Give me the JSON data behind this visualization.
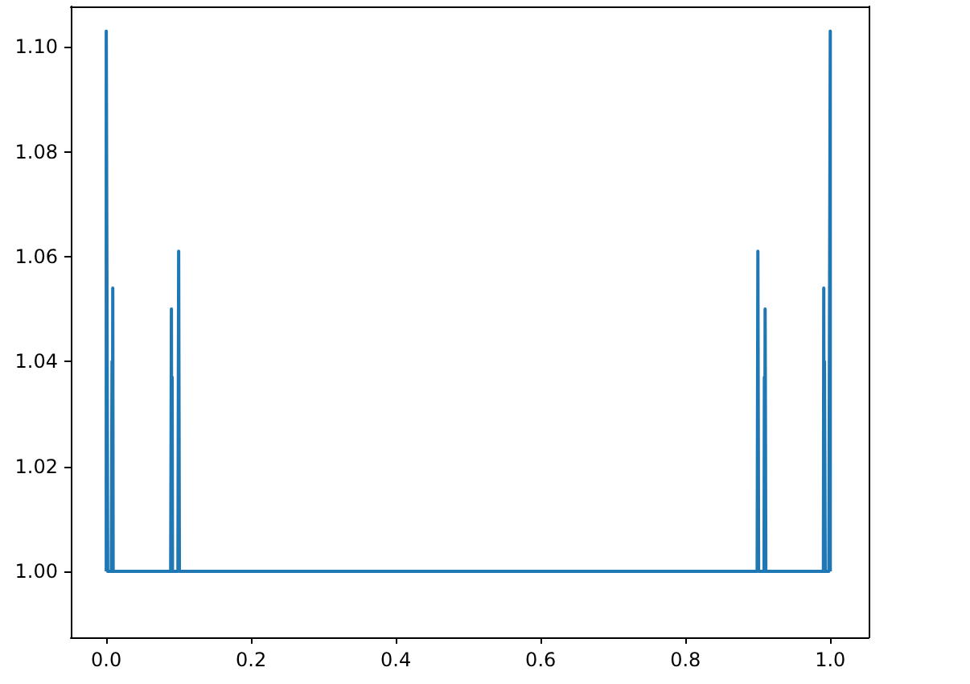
{
  "chart_data": {
    "type": "line",
    "grid": false,
    "marker": "none",
    "line_style": "solid",
    "x": [
      0,
      0,
      0.002,
      0.007,
      0.008,
      0.0085,
      0.009,
      0.0095,
      0.089,
      0.09,
      0.0905,
      0.091,
      0.0915,
      0.099,
      0.1,
      0.101,
      0.899,
      0.9,
      0.901,
      0.9085,
      0.909,
      0.9095,
      0.91,
      0.911,
      0.9905,
      0.991,
      0.9915,
      0.992,
      0.993,
      0.998,
      1.0,
      1.0
    ],
    "series": [
      {
        "color": "#1f77b4",
        "values": [
          1.0,
          1.103,
          1.0,
          1.0,
          1.04,
          1.0,
          1.054,
          1.0,
          1.0,
          1.05,
          1.0,
          1.037,
          1.0,
          1.0,
          1.061,
          1.0,
          1.0,
          1.061,
          1.0,
          1.0,
          1.037,
          1.0,
          1.05,
          1.0,
          1.0,
          1.054,
          1.0,
          1.04,
          1.0,
          1.0,
          1.103,
          1.0
        ]
      }
    ],
    "xlim": [
      -0.049,
      1.053
    ],
    "ylim": [
      0.9874,
      1.1077
    ],
    "xticks": [
      {
        "value": 0,
        "label": "0.0"
      },
      {
        "value": 0.2,
        "label": "0.2"
      },
      {
        "value": 0.4,
        "label": "0.4"
      },
      {
        "value": 0.6,
        "label": "0.6"
      },
      {
        "value": 0.8,
        "label": "0.8"
      },
      {
        "value": 1,
        "label": "1.0"
      }
    ],
    "yticks": [
      {
        "value": 1,
        "label": "1.00"
      },
      {
        "value": 1.02,
        "label": "1.02"
      },
      {
        "value": 1.04,
        "label": "1.04"
      },
      {
        "value": 1.06,
        "label": "1.06"
      },
      {
        "value": 1.08,
        "label": "1.08"
      },
      {
        "value": 1.1,
        "label": "1.10"
      }
    ]
  }
}
